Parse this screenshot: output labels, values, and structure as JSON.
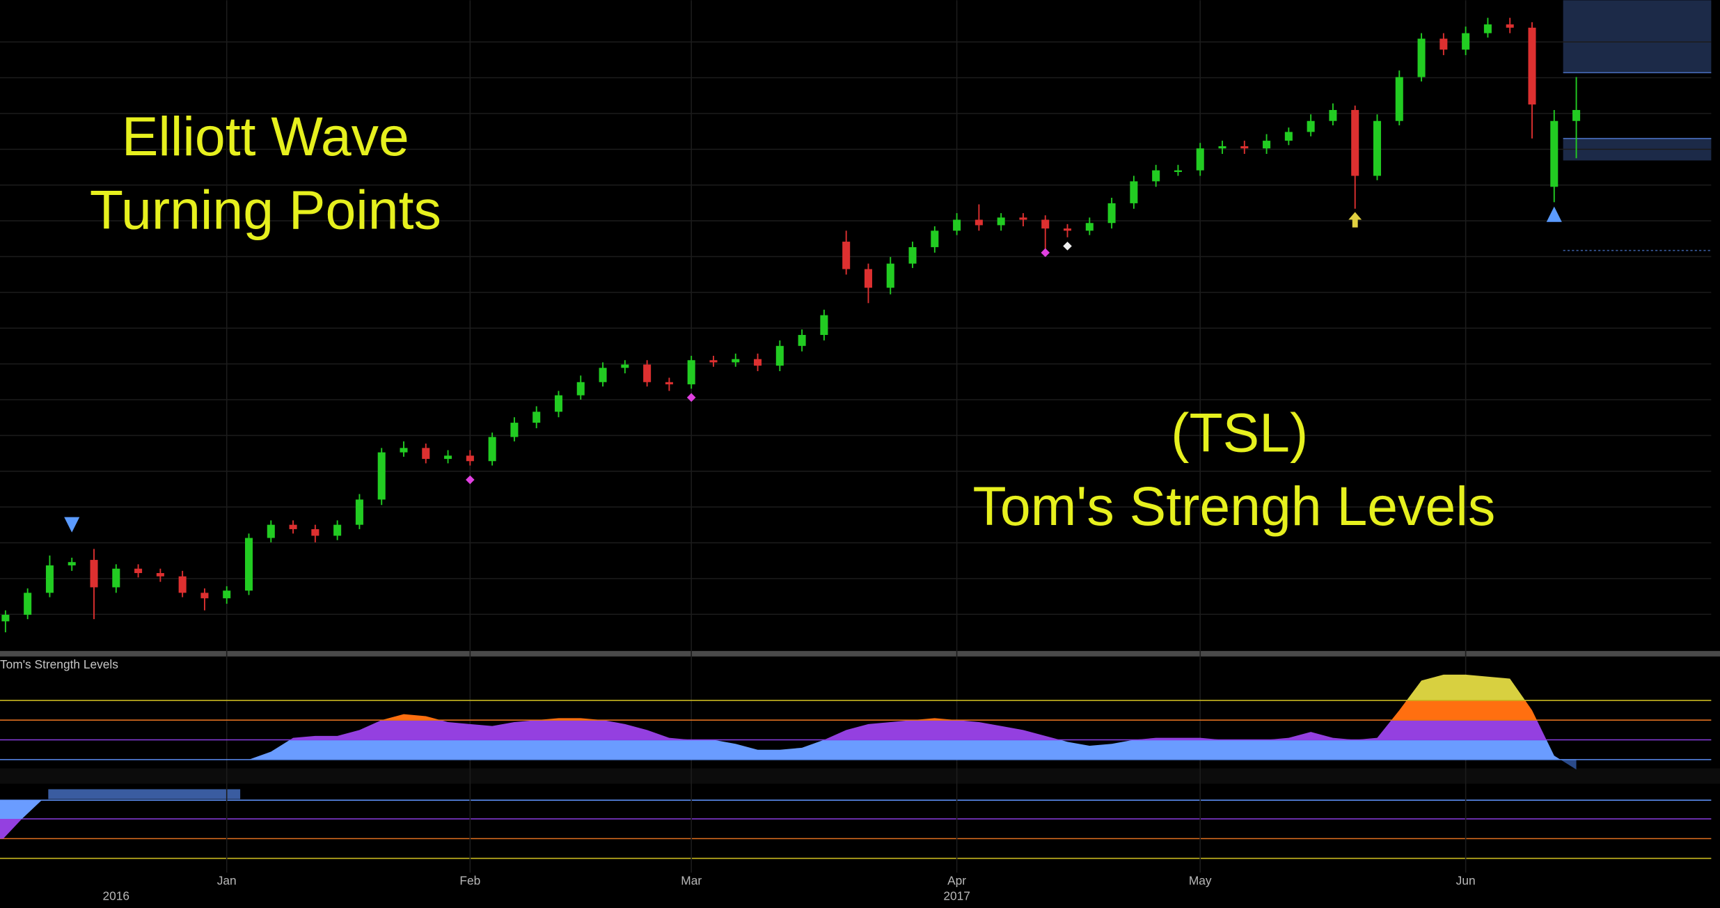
{
  "chart_data": {
    "type": "candlestick",
    "annotations": [
      "Elliott Wave",
      "Turning Points",
      "(TSL)",
      "Tom's Strengh Levels"
    ],
    "categories": [
      null,
      null,
      null,
      null,
      null,
      null,
      null,
      null,
      null,
      null,
      "Jan",
      null,
      null,
      null,
      null,
      null,
      null,
      null,
      null,
      null,
      null,
      "Feb",
      null,
      null,
      null,
      null,
      null,
      null,
      null,
      null,
      null,
      "Mar",
      null,
      null,
      null,
      null,
      null,
      null,
      null,
      null,
      null,
      null,
      null,
      "Apr",
      null,
      null,
      null,
      null,
      null,
      null,
      null,
      null,
      null,
      null,
      "May",
      null,
      null,
      null,
      null,
      null,
      null,
      null,
      null,
      null,
      null,
      null,
      "Jun",
      null,
      null,
      null,
      null,
      null
    ],
    "years": [
      null,
      null,
      null,
      null,
      null,
      "2016",
      null,
      null,
      null,
      null,
      null,
      null,
      null,
      null,
      null,
      null,
      null,
      null,
      null,
      null,
      null,
      null,
      null,
      null,
      null,
      null,
      null,
      null,
      null,
      null,
      null,
      null,
      null,
      null,
      null,
      null,
      null,
      null,
      null,
      null,
      null,
      null,
      null,
      "2017",
      null,
      null,
      null,
      null,
      null,
      null,
      null,
      null,
      null,
      null,
      null,
      null,
      null,
      null,
      null,
      null,
      null,
      null,
      null,
      null,
      null,
      null,
      null,
      null,
      null,
      null,
      null,
      null
    ],
    "open": [
      17,
      20,
      30,
      42.5,
      45,
      32.5,
      41,
      39,
      37.5,
      30,
      27.5,
      31,
      55,
      61,
      59,
      56,
      61,
      72.5,
      94,
      96,
      91,
      92.5,
      90,
      101,
      107.5,
      112.5,
      120,
      126,
      132.5,
      134,
      126,
      125,
      136,
      135,
      136.5,
      133.5,
      142.5,
      147.5,
      190,
      177.5,
      169,
      180,
      187.5,
      195,
      200,
      197.5,
      201,
      200,
      196,
      195,
      198.5,
      207.5,
      217.5,
      222.5,
      222.5,
      232.5,
      233.5,
      232.5,
      236,
      240,
      245,
      250,
      220,
      245,
      265,
      282.5,
      277.5,
      285,
      289,
      287.5,
      215,
      245
    ],
    "high": [
      22,
      32,
      47,
      46,
      50,
      43,
      43,
      41,
      40,
      32,
      33,
      57,
      63,
      63,
      61,
      63,
      75,
      96,
      99,
      98,
      95,
      95,
      103,
      110,
      115,
      122,
      129,
      135,
      136,
      136,
      128,
      138,
      138,
      139,
      139,
      145,
      150,
      159,
      195,
      180,
      183,
      190,
      197,
      203,
      207,
      203,
      203,
      202,
      198,
      201,
      210,
      220,
      225,
      225,
      235,
      236,
      236,
      239,
      242,
      248,
      253,
      252,
      248,
      268,
      285,
      285,
      288,
      292,
      292,
      290,
      250,
      265
    ],
    "low": [
      12,
      18,
      28,
      40,
      18,
      30,
      37,
      35,
      28,
      22,
      25,
      29,
      53,
      57,
      53,
      54,
      59,
      70,
      92,
      89,
      89,
      88,
      88,
      99,
      105,
      110,
      118,
      124,
      130,
      124,
      122,
      123,
      133,
      133,
      131,
      131,
      140,
      145,
      175,
      162,
      166,
      178,
      185,
      193,
      195,
      195,
      197,
      186,
      192,
      193,
      196,
      205,
      215,
      220,
      220,
      230,
      230,
      230,
      234,
      238,
      243,
      205,
      218,
      243,
      263,
      275,
      275,
      283,
      285,
      237,
      208,
      228
    ],
    "close": [
      20,
      30,
      42.5,
      44,
      32.5,
      41,
      39,
      37.5,
      30,
      27.5,
      31,
      55,
      61,
      59,
      56,
      61,
      72.5,
      94,
      96,
      91,
      92.5,
      90,
      101,
      107.5,
      112.5,
      120,
      126,
      132.5,
      134,
      126,
      125,
      136,
      135,
      136.5,
      133.5,
      142.5,
      147.5,
      156.5,
      177.5,
      169,
      180,
      187.5,
      195,
      200,
      197.5,
      201,
      200,
      196,
      195,
      198.5,
      207.5,
      217.5,
      222.5,
      222.5,
      232.5,
      233.5,
      232.5,
      236,
      240,
      245,
      250,
      220,
      245,
      265,
      282.5,
      277.5,
      285,
      289,
      287.5,
      252.5,
      245,
      250
    ],
    "up_color": "#22cc22",
    "down_color": "#dd3030",
    "ylim": [
      5,
      300
    ],
    "grid": true,
    "signals": [
      {
        "at": 3,
        "value": 61,
        "shape": "triangle-down",
        "color": "#5b9bff"
      },
      {
        "at": 21,
        "value": 81.5,
        "shape": "diamond",
        "color": "#e040e0"
      },
      {
        "at": 31,
        "value": 119,
        "shape": "diamond",
        "color": "#e040e0"
      },
      {
        "at": 47,
        "value": 185,
        "shape": "diamond",
        "color": "#e040e0"
      },
      {
        "at": 48,
        "value": 188,
        "shape": "diamond",
        "color": "#f0f0f0"
      },
      {
        "at": 61,
        "value": 200,
        "shape": "arrow-up",
        "color": "#e0d040"
      },
      {
        "at": 70,
        "value": 202.5,
        "shape": "triangle-up",
        "color": "#5b9bff"
      }
    ],
    "tsl": {
      "title": "Tom's Strength Levels",
      "values": [
        0,
        0,
        0,
        0,
        0,
        0,
        0,
        0,
        0,
        0,
        0,
        0,
        0.4,
        1.1,
        1.2,
        1.2,
        1.5,
        2,
        2.3,
        2.2,
        1.9,
        1.8,
        1.7,
        1.9,
        2,
        2.1,
        2.1,
        2,
        1.8,
        1.5,
        1.1,
        1,
        1,
        0.8,
        0.5,
        0.5,
        0.6,
        1,
        1.5,
        1.8,
        1.9,
        2,
        2.1,
        2,
        1.9,
        1.7,
        1.5,
        1.2,
        0.9,
        0.7,
        0.8,
        1,
        1.1,
        1.1,
        1.1,
        1,
        1,
        1,
        1.1,
        1.4,
        1.1,
        1,
        1.1,
        2.5,
        4,
        4.3,
        4.3,
        4.2,
        4.1,
        2.5,
        0.2,
        -0.5
      ],
      "ylim": [
        -0.5,
        4.5
      ],
      "levels": [
        0,
        1,
        2,
        3
      ],
      "level_colors": [
        "#5b8cf0",
        "#8a3ee0",
        "#e07020",
        "#c8b820"
      ],
      "band_colors": [
        "#2a4a8a",
        "#6a9cff",
        "#9440e0",
        "#ff6f10",
        "#d8d040"
      ]
    }
  }
}
